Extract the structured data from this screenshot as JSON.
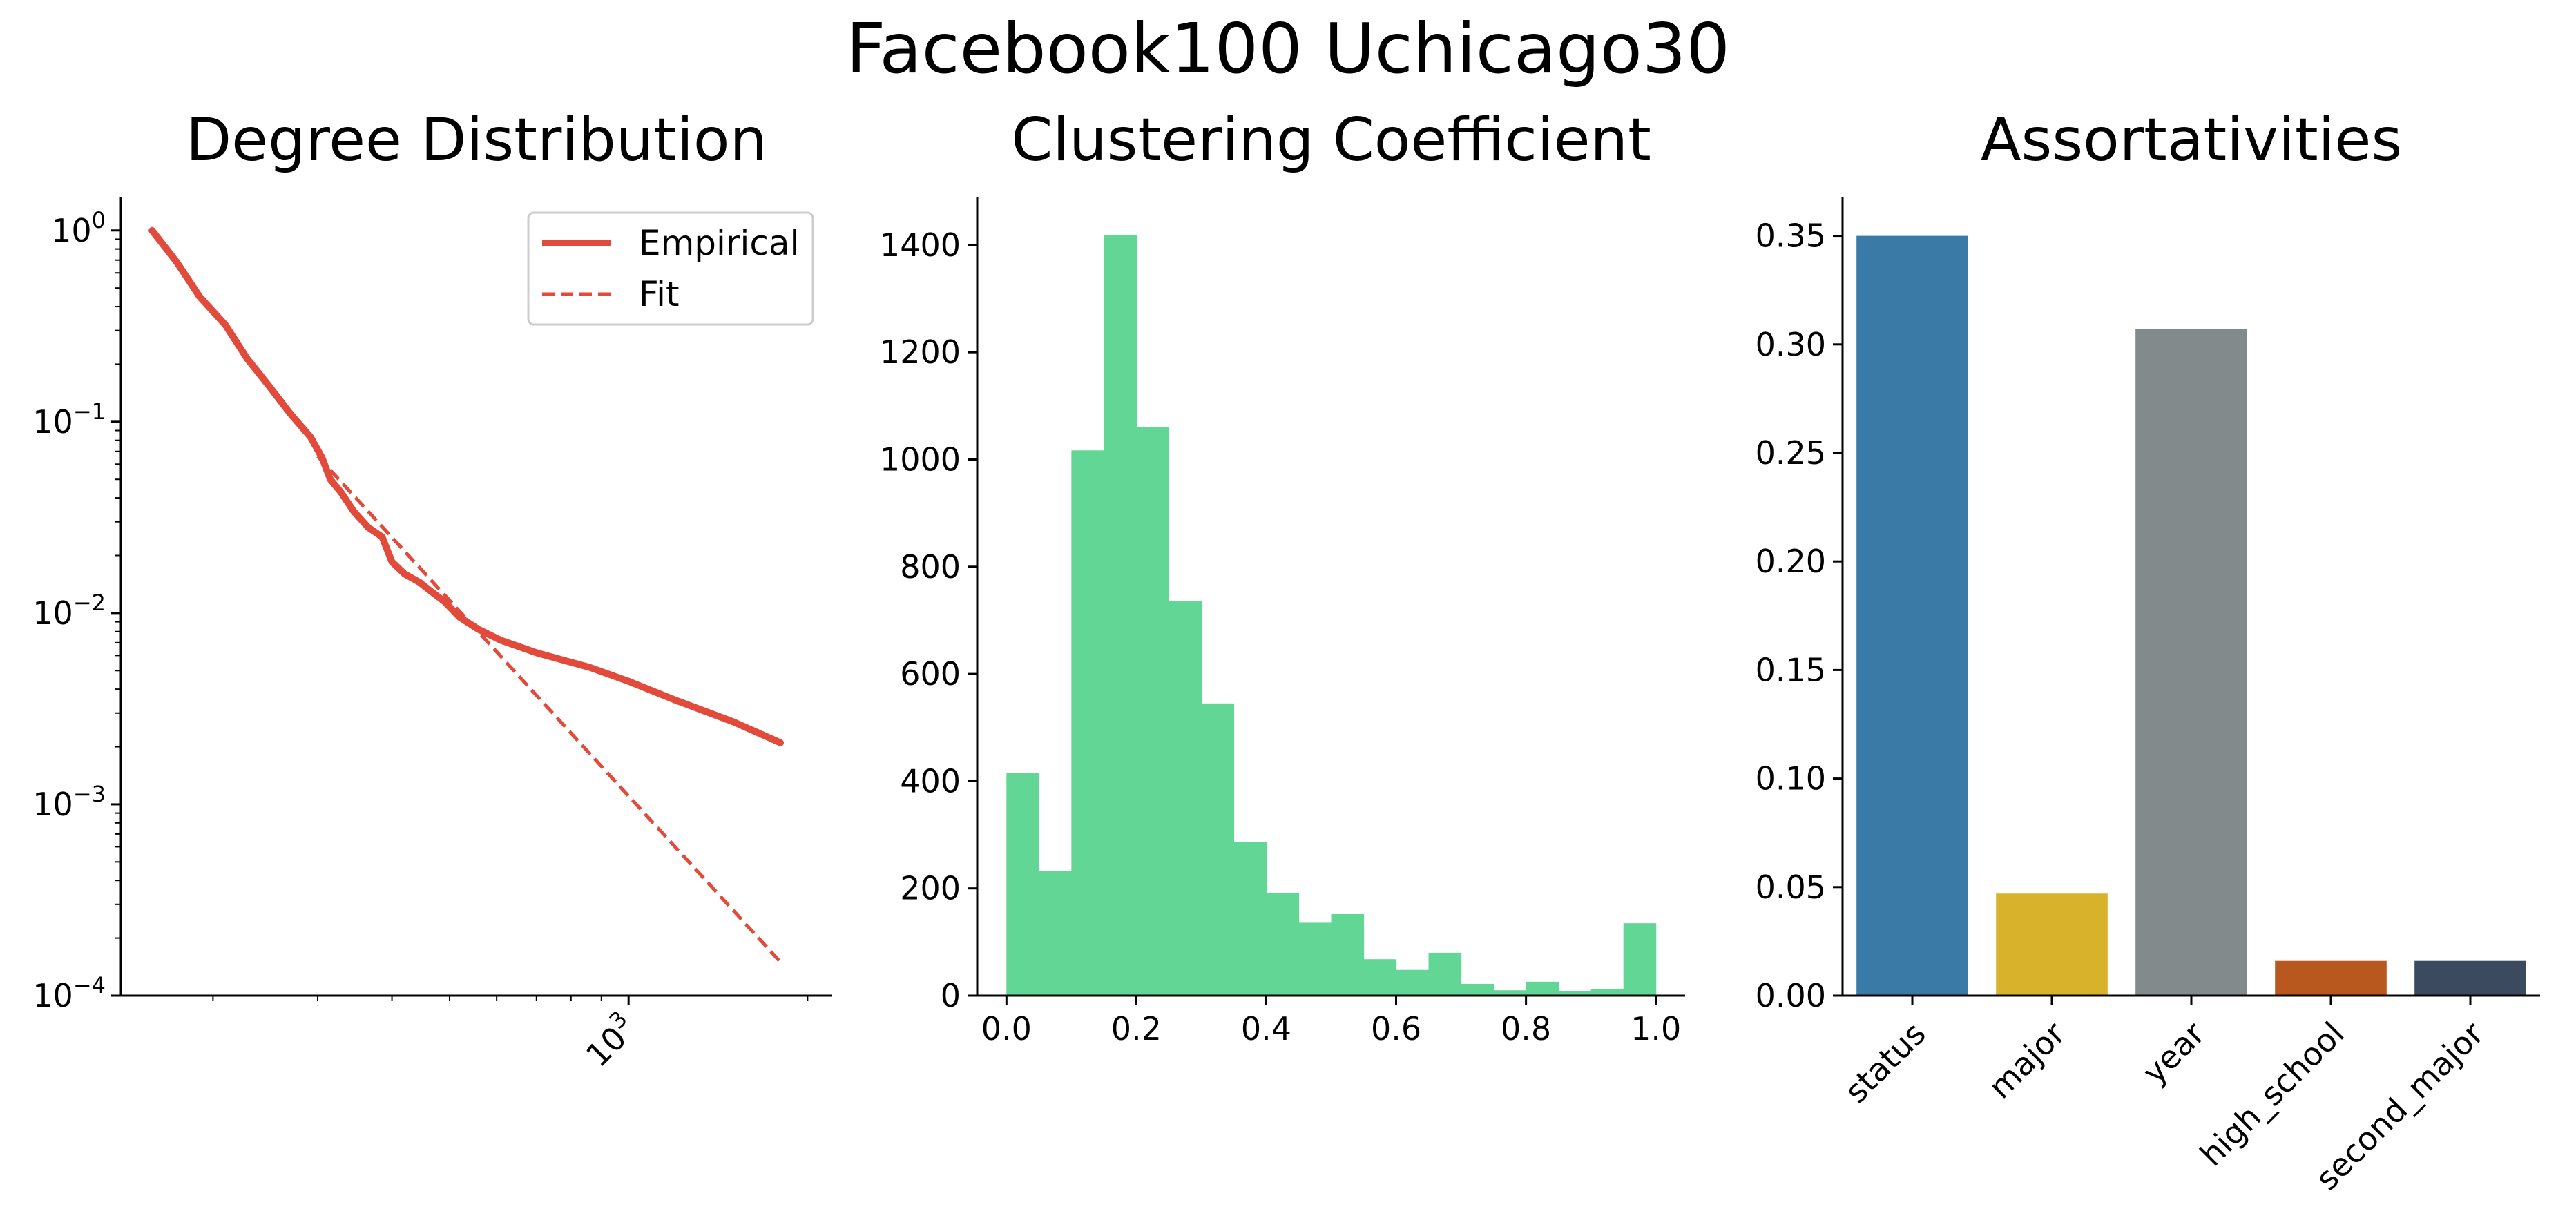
{
  "title": "Facebook100 Uchicago30",
  "chart_data": [
    {
      "type": "line",
      "title": "Degree Distribution",
      "scale": {
        "x": "log",
        "y": "log"
      },
      "xlim": [
        140,
        2200
      ],
      "ylim": [
        0.0001,
        1.5
      ],
      "x_ticks": [
        {
          "value": 1000,
          "base": "10",
          "exp": "3"
        }
      ],
      "y_ticks": [
        {
          "value": 1,
          "base": "10",
          "exp": "0"
        },
        {
          "value": 0.1,
          "base": "10",
          "exp": "−1"
        },
        {
          "value": 0.01,
          "base": "10",
          "exp": "−2"
        },
        {
          "value": 0.001,
          "base": "10",
          "exp": "−3"
        },
        {
          "value": 0.0001,
          "base": "10",
          "exp": "−4"
        }
      ],
      "legend": {
        "position": "top-right"
      },
      "series": [
        {
          "name": "Empirical",
          "color": "#e24a3b",
          "style": "solid",
          "x": [
            158,
            174,
            190,
            210,
            228,
            248,
            270,
            292,
            305,
            315,
            328,
            345,
            365,
            385,
            400,
            420,
            445,
            465,
            490,
            520,
            560,
            610,
            700,
            860,
            1000,
            1200,
            1500,
            1800
          ],
          "y": [
            1.0,
            0.68,
            0.45,
            0.32,
            0.215,
            0.155,
            0.11,
            0.083,
            0.065,
            0.05,
            0.043,
            0.034,
            0.028,
            0.025,
            0.0185,
            0.016,
            0.0145,
            0.013,
            0.0115,
            0.0095,
            0.0082,
            0.0072,
            0.0062,
            0.0052,
            0.0044,
            0.0035,
            0.0027,
            0.0021
          ]
        },
        {
          "name": "Fit",
          "color": "#e24a3b",
          "style": "dashed",
          "x": [
            300,
            1800
          ],
          "y": [
            0.066,
            0.00015
          ]
        }
      ]
    },
    {
      "type": "bar",
      "subtype": "histogram",
      "title": "Clustering Coefficient",
      "color": "#62d695",
      "xlim": [
        -0.045,
        1.045
      ],
      "ylim": [
        0,
        1490
      ],
      "x_ticks": [
        "0.0",
        "0.2",
        "0.4",
        "0.6",
        "0.8",
        "1.0"
      ],
      "y_ticks": [
        "0",
        "200",
        "400",
        "600",
        "800",
        "1000",
        "1200",
        "1400"
      ],
      "bin_edges": [
        0.0,
        0.05,
        0.1,
        0.15,
        0.2,
        0.25,
        0.3,
        0.35,
        0.4,
        0.45,
        0.5,
        0.55,
        0.6,
        0.65,
        0.7,
        0.75,
        0.8,
        0.85,
        0.9,
        0.95,
        1.0
      ],
      "values": [
        415,
        232,
        1017,
        1418,
        1060,
        736,
        545,
        287,
        192,
        136,
        152,
        68,
        48,
        80,
        22,
        10,
        26,
        8,
        12,
        135
      ]
    },
    {
      "type": "bar",
      "title": "Assortativities",
      "ylim": [
        0,
        0.368
      ],
      "y_ticks": [
        "0.00",
        "0.05",
        "0.10",
        "0.15",
        "0.20",
        "0.25",
        "0.30",
        "0.35"
      ],
      "categories": [
        "status",
        "major",
        "year",
        "high_school",
        "second_major"
      ],
      "values": [
        0.35,
        0.047,
        0.307,
        0.016,
        0.016
      ],
      "colors": [
        "#3a7aa6",
        "#d9b22b",
        "#828a8b",
        "#b8581e",
        "#3b4a5e"
      ]
    }
  ]
}
